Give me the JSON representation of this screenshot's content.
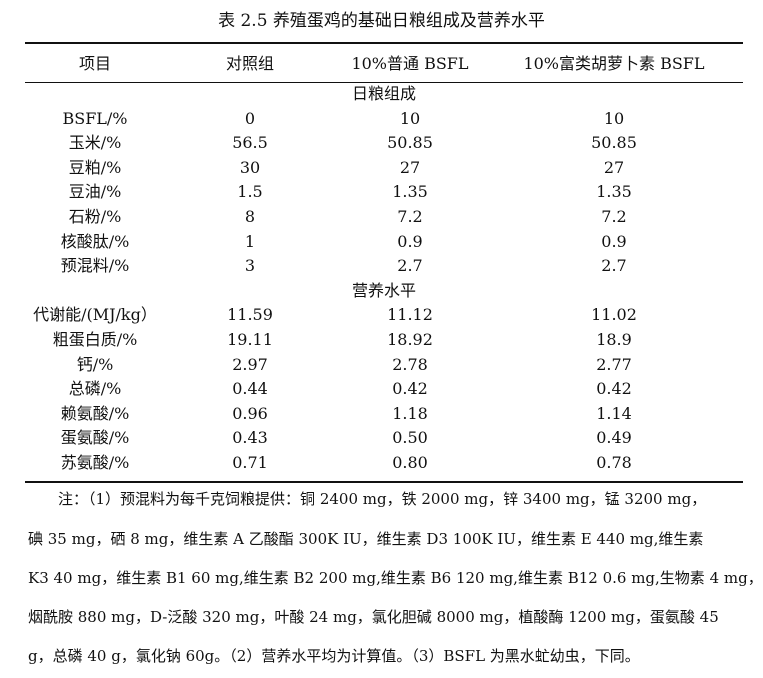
{
  "title": "表 2.5  养殖蛋鸡的基础日粮组成及营养水平",
  "headers": [
    "项目",
    "对照组",
    "10%普通 BSFL",
    "10%富类胡萝卜素 BSFL"
  ],
  "sections": [
    {
      "label": "日粮组成",
      "rows": [
        [
          "BSFL/%",
          "0",
          "10",
          "10"
        ],
        [
          "玉米/%",
          "56.5",
          "50.85",
          "50.85"
        ],
        [
          "豆粕/%",
          "30",
          "27",
          "27"
        ],
        [
          "豆油/%",
          "1.5",
          "1.35",
          "1.35"
        ],
        [
          "石粉/%",
          "8",
          "7.2",
          "7.2"
        ],
        [
          "核酸肽/%",
          "1",
          "0.9",
          "0.9"
        ],
        [
          "预混料/%",
          "3",
          "2.7",
          "2.7"
        ]
      ]
    },
    {
      "label": "营养水平",
      "rows": [
        [
          "代谢能/(MJ/kg）",
          "11.59",
          "11.12",
          "11.02"
        ],
        [
          "粗蛋白质/%",
          "19.11",
          "18.92",
          "18.9"
        ],
        [
          "钙/%",
          "2.97",
          "2.78",
          "2.77"
        ],
        [
          "总磷/%",
          "0.44",
          "0.42",
          "0.42"
        ],
        [
          "赖氨酸/%",
          "0.96",
          "1.18",
          "1.14"
        ],
        [
          "蛋氨酸/%",
          "0.43",
          "0.50",
          "0.49"
        ],
        [
          "苏氨酸/%",
          "0.71",
          "0.80",
          "0.78"
        ]
      ]
    }
  ],
  "notes": [
    "注：（1）预混料为每千克饲粮提供：铜 2400 mg，铁 2000 mg，锌  3400 mg，锰  3200 mg，",
    "碘  35 mg，硒  8 mg，维生素 A 乙酸酯  300K IU，维生素 D3 100K IU，维生素 E 440 mg,维生素",
    "K3 40 mg，维生素 B1 60 mg,维生素 B2 200 mg,维生素 B6 120 mg,维生素 B12 0.6 mg,生物素  4 mg，",
    "烟酰胺  880 mg，D-泛酸  320 mg，叶酸  24 mg，氯化胆碱  8000 mg，植酸酶  1200 mg，蛋氨酸  45",
    "g，总磷  40 g，氯化钠  60g。（2）营养水平均为计算值。（3）BSFL 为黑水虻幼虫，下同。"
  ]
}
